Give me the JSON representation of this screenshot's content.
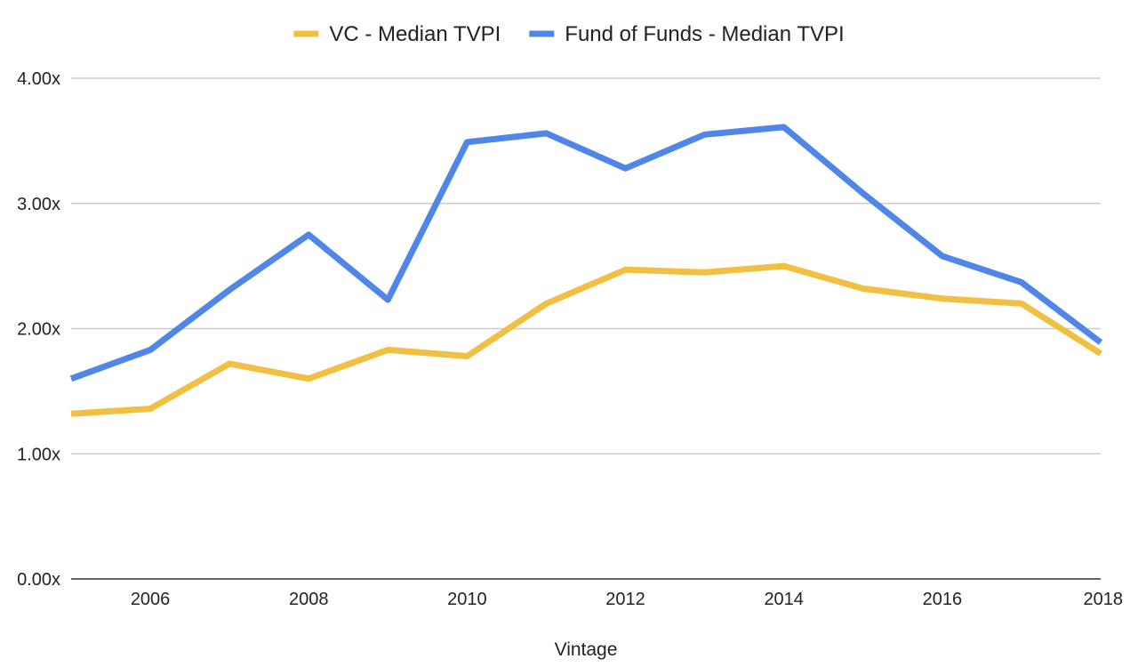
{
  "chart_data": {
    "type": "line",
    "title": "",
    "xlabel": "Vintage",
    "ylabel": "",
    "x": [
      2005,
      2006,
      2007,
      2008,
      2009,
      2010,
      2011,
      2012,
      2013,
      2014,
      2015,
      2016,
      2017,
      2018
    ],
    "x_ticks": [
      "2006",
      "2008",
      "2010",
      "2012",
      "2014",
      "2016",
      "2018"
    ],
    "xlim": [
      2005,
      2018
    ],
    "ylim": [
      0,
      4
    ],
    "y_ticks": [
      "0.00x",
      "1.00x",
      "2.00x",
      "3.00x",
      "4.00x"
    ],
    "grid": true,
    "legend_position": "top-center",
    "series": [
      {
        "name": "VC - Median TVPI",
        "color": "#F1C042",
        "values": [
          1.32,
          1.36,
          1.72,
          1.6,
          1.83,
          1.78,
          2.2,
          2.47,
          2.45,
          2.5,
          2.32,
          2.24,
          2.2,
          1.8
        ]
      },
      {
        "name": "Fund of Funds - Median TVPI",
        "color": "#4F86E7",
        "values": [
          1.6,
          1.83,
          2.31,
          2.75,
          2.23,
          3.49,
          3.56,
          3.28,
          3.55,
          3.61,
          3.08,
          2.58,
          2.37,
          1.89
        ]
      }
    ]
  }
}
